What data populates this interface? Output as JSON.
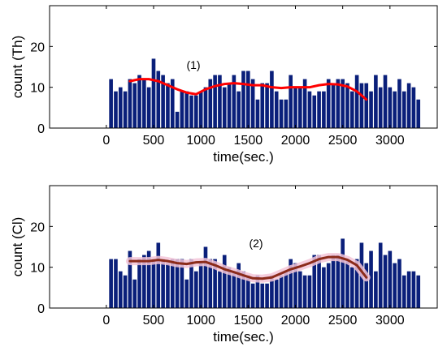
{
  "colors": {
    "bar": "#0a1f7a",
    "line1": "#ff0000",
    "line2": "#8b2b1a",
    "band2": "#f3c6d8"
  },
  "chart_data": [
    {
      "type": "bar",
      "xlabel": "time(sec.)",
      "ylabel": "count (Th)",
      "annotation": "(1)",
      "xlim": [
        -600,
        3500
      ],
      "ylim": [
        0,
        30
      ],
      "xticks": [
        0,
        500,
        1000,
        1500,
        2000,
        2500,
        3000
      ],
      "yticks": [
        0,
        10,
        20
      ],
      "bin_start": 50,
      "bin_width": 50,
      "values": [
        12,
        9,
        10,
        9,
        12,
        11,
        13,
        12,
        10,
        17,
        14,
        13,
        11,
        12,
        4,
        9,
        9,
        8,
        8,
        9,
        10,
        12,
        13,
        13,
        10,
        11,
        13,
        9,
        14,
        14,
        12,
        7,
        11,
        11,
        14,
        9,
        7,
        7,
        13,
        10,
        10,
        12,
        9,
        8,
        9,
        9,
        12,
        11,
        12,
        12,
        11,
        9,
        13,
        11,
        11,
        9,
        13,
        10,
        13,
        10,
        9,
        12,
        9,
        11,
        10,
        7
      ],
      "smooth": {
        "x": [
          250,
          350,
          450,
          550,
          650,
          750,
          850,
          950,
          1050,
          1150,
          1250,
          1350,
          1450,
          1550,
          1650,
          1750,
          1850,
          1950,
          2050,
          2150,
          2250,
          2350,
          2450,
          2550,
          2650,
          2750
        ],
        "y": [
          11.5,
          12,
          12,
          11.5,
          10.5,
          9.5,
          8.7,
          8.3,
          9.5,
          10.3,
          10.8,
          11,
          10.8,
          10.5,
          10.5,
          10,
          9.8,
          10,
          10,
          10,
          10.5,
          10.8,
          10.7,
          10.2,
          9,
          7
        ]
      }
    },
    {
      "type": "bar",
      "xlabel": "time(sec.)",
      "ylabel": "count (Cl)",
      "annotation": "(2)",
      "xlim": [
        -600,
        3500
      ],
      "ylim": [
        0,
        30
      ],
      "xticks": [
        0,
        500,
        1000,
        1500,
        2000,
        2500,
        3000
      ],
      "yticks": [
        0,
        10,
        20
      ],
      "bin_start": 50,
      "bin_width": 50,
      "values": [
        12,
        12,
        9,
        8,
        14,
        7,
        12,
        13,
        14,
        12,
        16,
        12,
        11,
        12,
        12,
        12,
        7,
        12,
        9,
        11,
        15,
        12,
        12,
        9,
        13,
        10,
        9,
        11,
        9,
        8,
        6,
        8,
        6,
        6,
        8,
        7,
        8,
        9,
        12,
        11,
        9,
        8,
        8,
        13,
        13,
        10,
        11,
        13,
        13,
        17,
        12,
        10,
        12,
        16,
        11,
        14,
        9,
        16,
        13,
        14,
        11,
        12,
        8,
        9,
        9,
        8
      ],
      "smooth": {
        "x": [
          250,
          350,
          450,
          550,
          650,
          750,
          850,
          950,
          1050,
          1150,
          1250,
          1350,
          1450,
          1550,
          1650,
          1750,
          1850,
          1950,
          2050,
          2150,
          2250,
          2350,
          2450,
          2550,
          2650,
          2750
        ],
        "y": [
          11.5,
          11.5,
          11.5,
          11.8,
          11.5,
          11,
          10.8,
          11.2,
          11.3,
          10.5,
          9.5,
          8.8,
          8,
          7.3,
          7.2,
          7.5,
          8.5,
          9.5,
          10.2,
          11,
          12,
          12.5,
          12.5,
          11.8,
          10.5,
          7.5
        ]
      }
    }
  ]
}
